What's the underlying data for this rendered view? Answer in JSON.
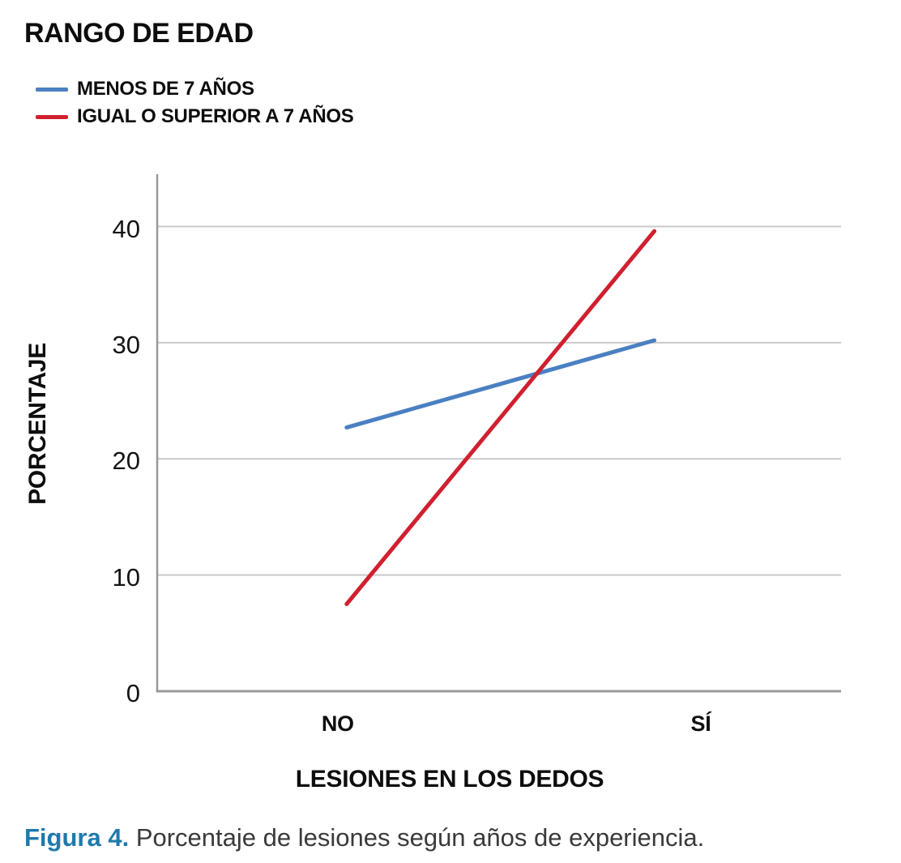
{
  "legend": {
    "title": "RANGO DE EDAD",
    "items": [
      {
        "label": "MENOS DE 7 AÑOS",
        "color": "#4a80c2"
      },
      {
        "label": "IGUAL O SUPERIOR A 7 AÑOS",
        "color": "#d0202f"
      }
    ]
  },
  "chart_data": {
    "type": "line",
    "categories": [
      "NO",
      "SÍ"
    ],
    "series": [
      {
        "name": "MENOS DE 7 AÑOS",
        "color": "#4a80c2",
        "values": [
          22.7,
          30.2
        ]
      },
      {
        "name": "IGUAL O SUPERIOR A 7 AÑOS",
        "color": "#d0202f",
        "values": [
          7.5,
          39.6
        ]
      }
    ],
    "xlabel": "LESIONES EN LOS DEDOS",
    "ylabel": "PORCENTAJE",
    "yticks": [
      0,
      10,
      20,
      30,
      40
    ],
    "ylim": [
      0,
      44.5
    ],
    "grid": "horizontal",
    "legend_position": "top-left",
    "colors": {
      "gridline": "#c9c9c9",
      "axis": "#999999"
    }
  },
  "caption": {
    "prefix": "Figura 4.",
    "text": " Porcentaje de lesiones según años de experiencia.",
    "prefix_color": "#1e7aad"
  }
}
